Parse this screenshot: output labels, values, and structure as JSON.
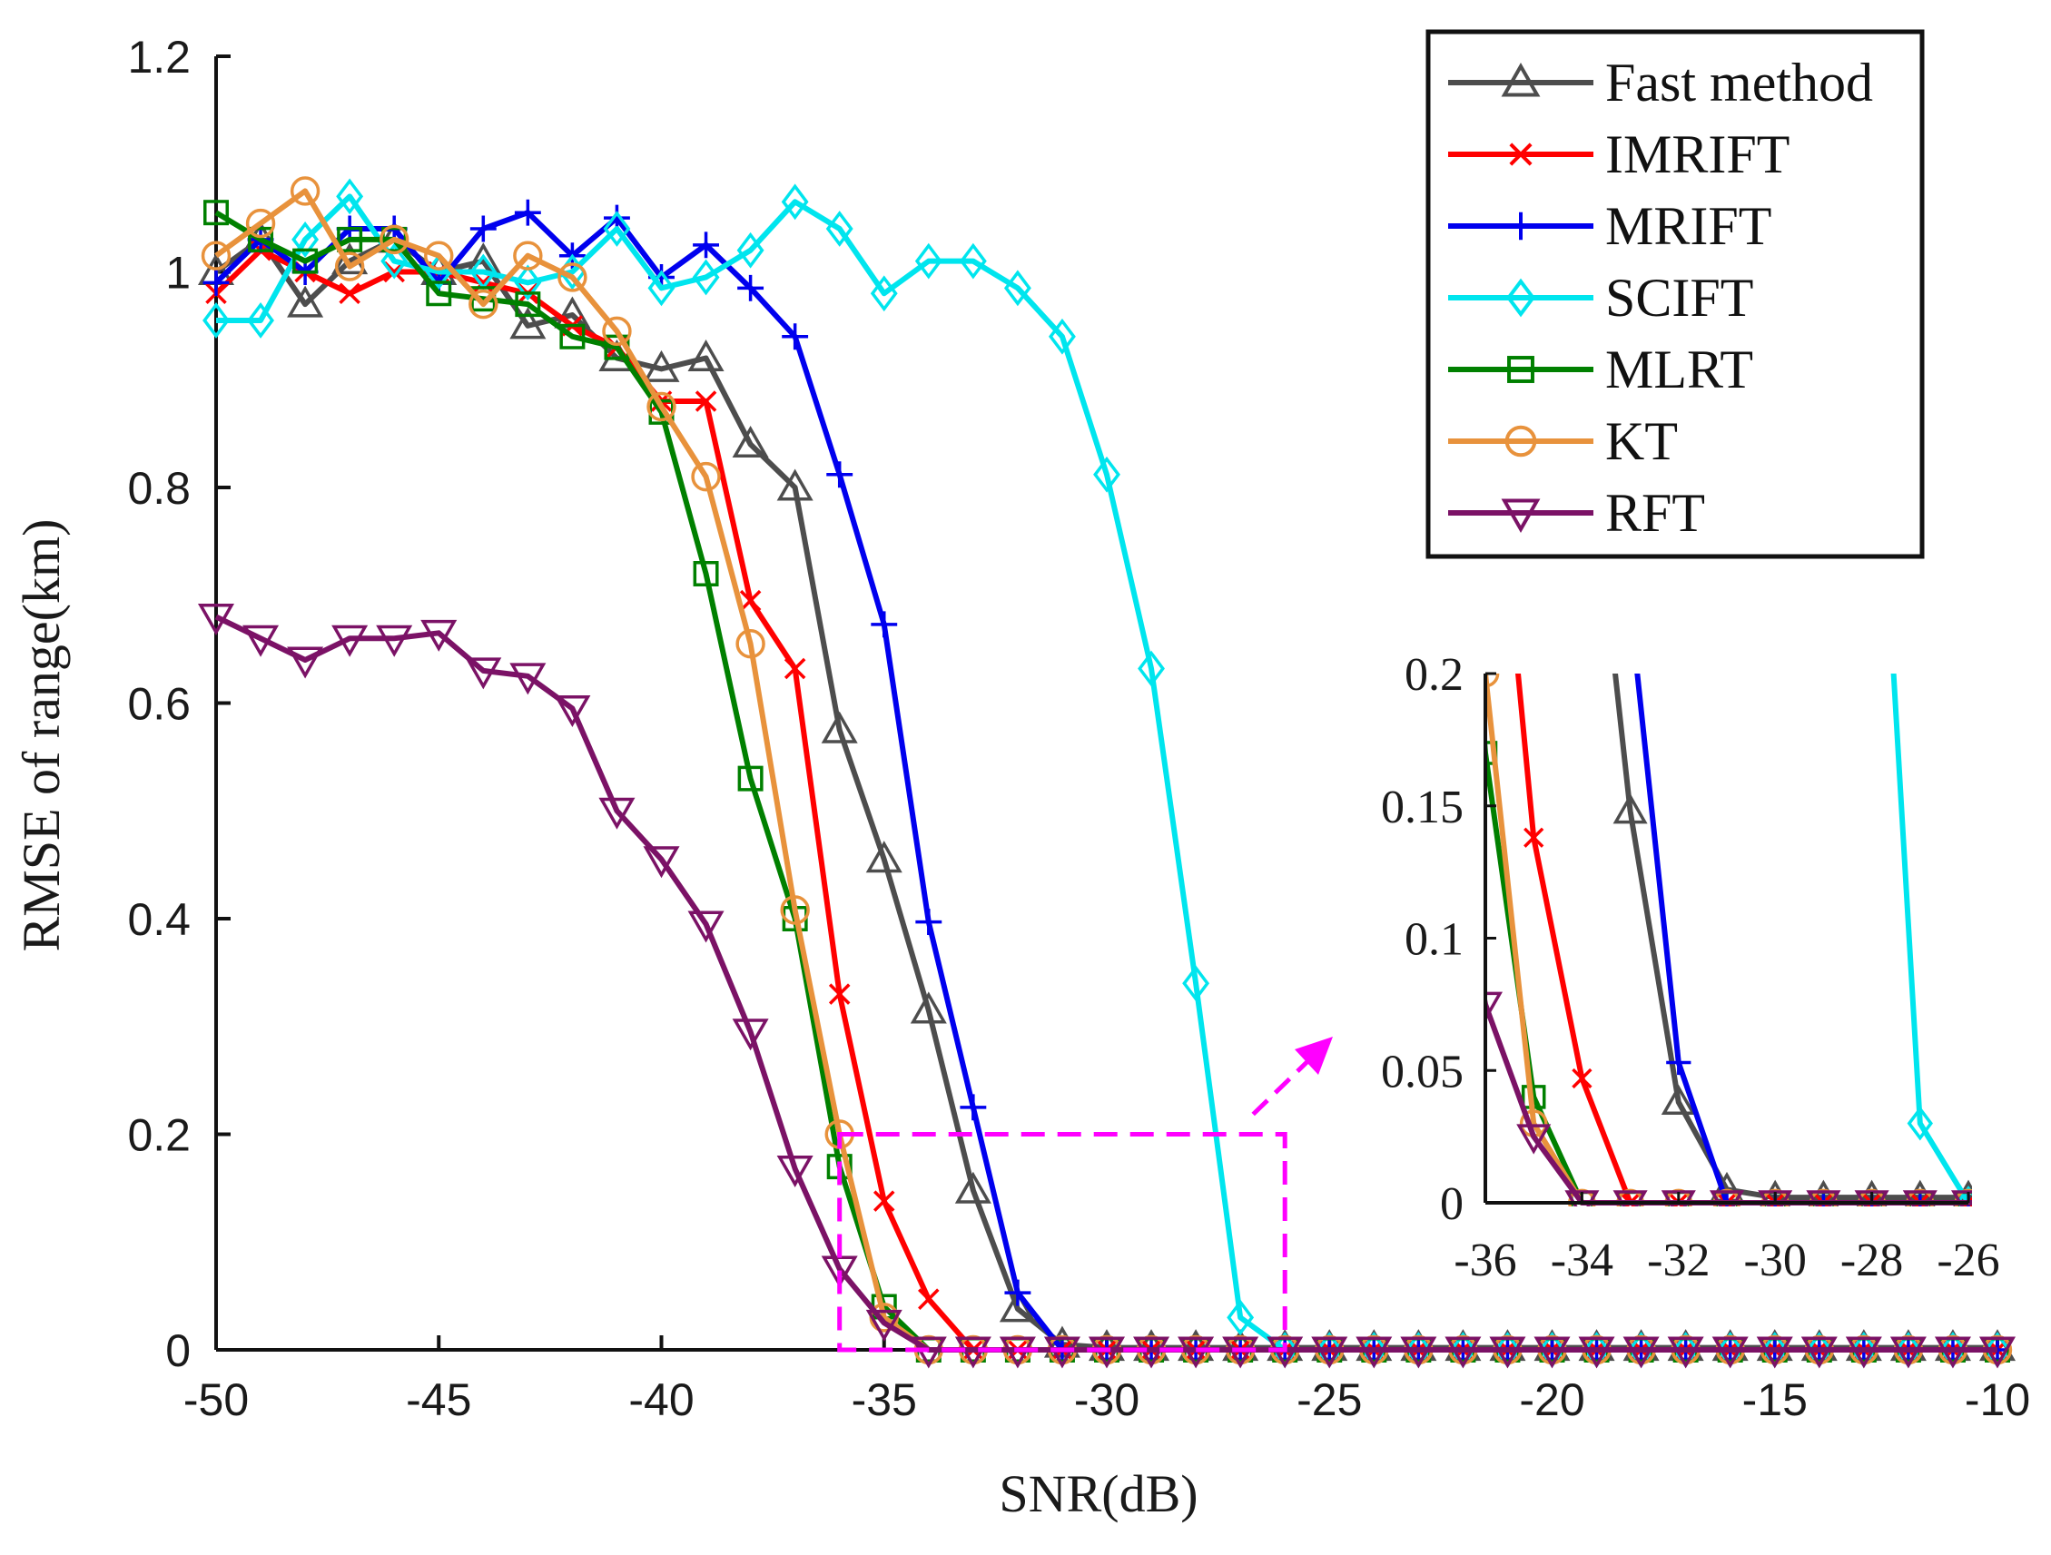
{
  "chart_data": {
    "type": "line",
    "xlabel": "SNR(dB)",
    "ylabel": "RMSE of range(km)",
    "xlim": [
      -50,
      -10
    ],
    "ylim": [
      0,
      1.2
    ],
    "xticks": [
      -50,
      -45,
      -40,
      -35,
      -30,
      -25,
      -20,
      -15,
      -10
    ],
    "xtick_labels": [
      "-50",
      "-45",
      "-40",
      "-35",
      "-30",
      "-25",
      "-20",
      "-15",
      "-10"
    ],
    "yticks": [
      0,
      0.2,
      0.4,
      0.6,
      0.8,
      1,
      1.2
    ],
    "ytick_labels": [
      "0",
      "0.2",
      "0.4",
      "0.6",
      "0.8",
      "1",
      "1.2"
    ],
    "legend_position": "top-right",
    "x": [
      -50,
      -49,
      -48,
      -47,
      -46,
      -45,
      -44,
      -43,
      -42,
      -41,
      -40,
      -39,
      -38,
      -37,
      -36,
      -35,
      -34,
      -33,
      -32,
      -31,
      -30,
      -29,
      -28,
      -27,
      -26,
      -25,
      -24,
      -23,
      -22,
      -21,
      -20,
      -19,
      -18,
      -17,
      -16,
      -15,
      -14,
      -13,
      -12,
      -11,
      -10
    ],
    "series": [
      {
        "name": "Fast method",
        "color": "#4d4d4d",
        "marker": "triangle",
        "values": [
          1.0,
          1.03,
          0.97,
          1.01,
          1.03,
          1.0,
          1.01,
          0.95,
          0.96,
          0.92,
          0.91,
          0.92,
          0.84,
          0.8,
          0.575,
          0.455,
          0.315,
          0.148,
          0.038,
          0.005,
          0.002,
          0.002,
          0.002,
          0.002,
          0.002,
          0.002,
          0.002,
          0.002,
          0.002,
          0.002,
          0.002,
          0.002,
          0.002,
          0.002,
          0.002,
          0.002,
          0.002,
          0.002,
          0.002,
          0.002,
          0.002
        ]
      },
      {
        "name": "IMRIFT",
        "color": "#ff0000",
        "marker": "x",
        "values": [
          0.98,
          1.02,
          1.0,
          0.98,
          1.0,
          1.0,
          0.99,
          0.98,
          0.95,
          0.93,
          0.88,
          0.88,
          0.695,
          0.632,
          0.33,
          0.138,
          0.047,
          0.0,
          0.0,
          0.0,
          0.0,
          0.0,
          0.0,
          0.0,
          0.0,
          0.0,
          0.0,
          0.0,
          0.0,
          0.0,
          0.0,
          0.0,
          0.0,
          0.0,
          0.0,
          0.0,
          0.0,
          0.0,
          0.0,
          0.0,
          0.0
        ]
      },
      {
        "name": "MRIFT",
        "color": "#0000ee",
        "marker": "plus",
        "values": [
          0.99,
          1.03,
          1.0,
          1.04,
          1.04,
          0.99,
          1.04,
          1.055,
          1.015,
          1.05,
          0.995,
          1.025,
          0.985,
          0.94,
          0.812,
          0.673,
          0.397,
          0.225,
          0.053,
          0.0,
          0.0,
          0.0,
          0.0,
          0.0,
          0.0,
          0.0,
          0.0,
          0.0,
          0.0,
          0.0,
          0.0,
          0.0,
          0.0,
          0.0,
          0.0,
          0.0,
          0.0,
          0.0,
          0.0,
          0.0,
          0.0
        ]
      },
      {
        "name": "SCIFT",
        "color": "#00e5ee",
        "marker": "diamond",
        "values": [
          0.955,
          0.955,
          1.03,
          1.07,
          1.01,
          1.0,
          1.0,
          0.99,
          1.0,
          1.04,
          0.985,
          0.995,
          1.02,
          1.065,
          1.04,
          0.98,
          1.01,
          1.01,
          0.985,
          0.94,
          0.812,
          0.632,
          0.34,
          0.03,
          0.0,
          0.0,
          0.0,
          0.0,
          0.0,
          0.0,
          0.0,
          0.0,
          0.0,
          0.0,
          0.0,
          0.0,
          0.0,
          0.0,
          0.0,
          0.0,
          0.0
        ]
      },
      {
        "name": "MLRT",
        "color": "#008000",
        "marker": "square",
        "values": [
          1.055,
          1.03,
          1.01,
          1.03,
          1.03,
          0.98,
          0.975,
          0.97,
          0.94,
          0.93,
          0.87,
          0.72,
          0.53,
          0.4,
          0.17,
          0.04,
          0.0,
          0.0,
          0.0,
          0.0,
          0.0,
          0.0,
          0.0,
          0.0,
          0.0,
          0.0,
          0.0,
          0.0,
          0.0,
          0.0,
          0.0,
          0.0,
          0.0,
          0.0,
          0.0,
          0.0,
          0.0,
          0.0,
          0.0,
          0.0,
          0.0
        ]
      },
      {
        "name": "KT",
        "color": "#e8923c",
        "marker": "circle",
        "values": [
          1.015,
          1.045,
          1.075,
          1.005,
          1.03,
          1.015,
          0.97,
          1.015,
          0.995,
          0.945,
          0.875,
          0.81,
          0.655,
          0.408,
          0.2,
          0.03,
          0.0,
          0.0,
          0.0,
          0.0,
          0.0,
          0.0,
          0.0,
          0.0,
          0.0,
          0.0,
          0.0,
          0.0,
          0.0,
          0.0,
          0.0,
          0.0,
          0.0,
          0.0,
          0.0,
          0.0,
          0.0,
          0.0,
          0.0,
          0.0,
          0.0
        ]
      },
      {
        "name": "RFT",
        "color": "#7b1266",
        "marker": "triangle-down",
        "values": [
          0.68,
          0.66,
          0.64,
          0.66,
          0.66,
          0.665,
          0.63,
          0.625,
          0.595,
          0.5,
          0.455,
          0.395,
          0.295,
          0.168,
          0.075,
          0.025,
          0.0,
          0.0,
          0.0,
          0.0,
          0.0,
          0.0,
          0.0,
          0.0,
          0.0,
          0.0,
          0.0,
          0.0,
          0.0,
          0.0,
          0.0,
          0.0,
          0.0,
          0.0,
          0.0,
          0.0,
          0.0,
          0.0,
          0.0,
          0.0,
          0.0
        ]
      }
    ],
    "inset": {
      "xlim": [
        -36,
        -26
      ],
      "ylim": [
        0,
        0.2
      ],
      "xticks": [
        -36,
        -34,
        -32,
        -30,
        -28,
        -26
      ],
      "xtick_labels": [
        "-36",
        "-34",
        "-32",
        "-30",
        "-28",
        "-26"
      ],
      "yticks": [
        0,
        0.05,
        0.1,
        0.15,
        0.2
      ],
      "ytick_labels": [
        "0",
        "0.05",
        "0.1",
        "0.15",
        "0.2"
      ],
      "zoom_region": {
        "x": [
          -36,
          -26
        ],
        "y": [
          0,
          0.2
        ]
      }
    }
  }
}
